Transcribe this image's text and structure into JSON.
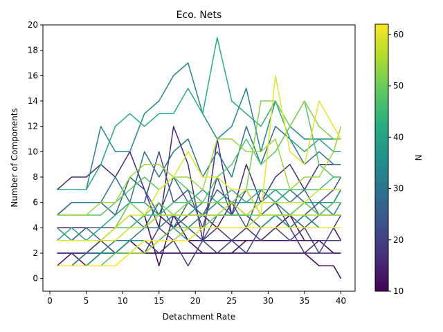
{
  "chart_data": {
    "type": "line",
    "title": "Eco. Nets",
    "xlabel": "Detachment Rate",
    "ylabel": "Number of Components",
    "xlim": [
      -0.95,
      41.95
    ],
    "ylim": [
      -1,
      20
    ],
    "xticks": [
      0,
      5,
      10,
      15,
      20,
      25,
      30,
      35,
      40
    ],
    "yticks": [
      0,
      2,
      4,
      6,
      8,
      10,
      12,
      14,
      16,
      18,
      20
    ],
    "grid": false,
    "colormap": "viridis",
    "colorbar": {
      "label": "N",
      "min": 10,
      "max": 62,
      "ticks": [
        10,
        20,
        30,
        40,
        50,
        60
      ]
    },
    "x": [
      1,
      3,
      5,
      7,
      9,
      11,
      13,
      15,
      17,
      19,
      21,
      23,
      25,
      27,
      29,
      31,
      33,
      35,
      37,
      39,
      40
    ],
    "series": [
      {
        "n": 10,
        "values": [
          2,
          2,
          2,
          2,
          2,
          3,
          2,
          2,
          2,
          2,
          2,
          2,
          2,
          2,
          2,
          2,
          2,
          2,
          1,
          1,
          0
        ]
      },
      {
        "n": 11,
        "values": [
          1,
          1,
          2,
          3,
          4,
          4,
          5,
          1,
          5,
          3,
          2,
          2,
          2,
          3,
          3,
          4,
          5,
          3,
          3,
          2,
          2
        ]
      },
      {
        "n": 12,
        "values": [
          2,
          2,
          2,
          2,
          2,
          3,
          3,
          3,
          3,
          3,
          3,
          3,
          3,
          3,
          3,
          3,
          3,
          3,
          3,
          3,
          3
        ]
      },
      {
        "n": 13,
        "values": [
          1,
          2,
          1,
          2,
          2,
          2,
          2,
          2,
          2,
          2,
          2,
          2,
          2,
          2,
          2,
          2,
          2,
          2,
          2,
          2,
          2
        ]
      },
      {
        "n": 14,
        "values": [
          4,
          4,
          4,
          4,
          4,
          4,
          4,
          5,
          4,
          5,
          5,
          4,
          6,
          5,
          4,
          5,
          4,
          5,
          4,
          4,
          3
        ]
      },
      {
        "n": 16,
        "values": [
          7,
          8,
          8,
          9,
          8,
          10,
          7,
          4,
          12,
          9,
          3,
          11,
          5,
          9,
          6,
          8,
          9,
          7,
          9,
          9,
          9
        ]
      },
      {
        "n": 18,
        "values": [
          2,
          2,
          2,
          3,
          2,
          2,
          3,
          2,
          3,
          1,
          3,
          4,
          3,
          4,
          3,
          4,
          4,
          2,
          3,
          3,
          3
        ]
      },
      {
        "n": 20,
        "values": [
          1,
          1,
          1,
          2,
          2,
          2,
          2,
          4,
          3,
          4,
          3,
          2,
          3,
          2,
          4,
          4,
          3,
          4,
          2,
          4,
          5
        ]
      },
      {
        "n": 22,
        "values": [
          3,
          3,
          4,
          4,
          4,
          6,
          6,
          10,
          6,
          7,
          4,
          8,
          5,
          7,
          5,
          6,
          4,
          5,
          6,
          7,
          8
        ]
      },
      {
        "n": 24,
        "values": [
          1,
          1,
          1,
          2,
          2,
          3,
          3,
          3,
          4,
          4,
          3,
          5,
          5,
          5,
          4,
          5,
          5,
          4,
          5,
          5,
          5
        ]
      },
      {
        "n": 26,
        "values": [
          5,
          6,
          6,
          6,
          5,
          8,
          7,
          5,
          8,
          6,
          5,
          7,
          6,
          4,
          7,
          6,
          7,
          6,
          5,
          6,
          6
        ]
      },
      {
        "n": 28,
        "values": [
          3,
          3,
          4,
          3,
          4,
          5,
          4,
          6,
          4,
          6,
          5,
          5,
          6,
          7,
          5,
          6,
          6,
          7,
          5,
          6,
          7
        ]
      },
      {
        "n": 30,
        "values": [
          5,
          6,
          6,
          6,
          8,
          6,
          10,
          8,
          10,
          11,
          8,
          10,
          8,
          12,
          9,
          12,
          11,
          9,
          10,
          9,
          9
        ]
      },
      {
        "n": 32,
        "values": [
          1,
          1,
          2,
          2,
          3,
          3,
          4,
          4,
          5,
          4,
          5,
          6,
          5,
          5,
          6,
          6,
          5,
          6,
          6,
          5,
          6
        ]
      },
      {
        "n": 34,
        "values": [
          7,
          7,
          7,
          12,
          10,
          10,
          13,
          14,
          16,
          17,
          13,
          11,
          12,
          15,
          10,
          14,
          12,
          11,
          11,
          11,
          11
        ]
      },
      {
        "n": 36,
        "values": [
          4,
          3,
          3,
          3,
          4,
          4,
          4,
          5,
          5,
          5,
          6,
          6,
          6,
          6,
          6,
          7,
          6,
          6,
          6,
          6,
          7
        ]
      },
      {
        "n": 38,
        "values": [
          1,
          1,
          1,
          2,
          2,
          3,
          3,
          3,
          4,
          3,
          4,
          4,
          4,
          4,
          4,
          5,
          4,
          5,
          4,
          4,
          4
        ]
      },
      {
        "n": 40,
        "values": [
          3,
          4,
          3,
          4,
          5,
          6,
          6,
          5,
          6,
          6,
          7,
          6,
          7,
          6,
          7,
          6,
          7,
          7,
          7,
          7,
          7
        ]
      },
      {
        "n": 42,
        "values": [
          7,
          7,
          7,
          9,
          12,
          13,
          12,
          13,
          13,
          15,
          13,
          19,
          14,
          13,
          12,
          14,
          11,
          10,
          11,
          10,
          10
        ]
      },
      {
        "n": 44,
        "values": [
          1,
          1,
          1,
          1,
          2,
          2,
          2,
          3,
          3,
          3,
          4,
          4,
          4,
          4,
          4,
          4,
          4,
          4,
          4,
          4,
          4
        ]
      },
      {
        "n": 46,
        "values": [
          3,
          3,
          3,
          3,
          4,
          4,
          5,
          5,
          6,
          6,
          6,
          6,
          7,
          7,
          7,
          7,
          7,
          7,
          7,
          8,
          8
        ]
      },
      {
        "n": 48,
        "values": [
          5,
          5,
          5,
          5,
          6,
          7,
          8,
          7,
          8,
          7,
          6,
          8,
          9,
          11,
          9,
          10,
          12,
          14,
          9,
          8,
          8
        ]
      },
      {
        "n": 50,
        "values": [
          1,
          1,
          1,
          1,
          2,
          2,
          3,
          3,
          4,
          4,
          4,
          5,
          5,
          5,
          5,
          5,
          5,
          6,
          5,
          6,
          6
        ]
      },
      {
        "n": 52,
        "values": [
          3,
          3,
          3,
          3,
          4,
          6,
          5,
          6,
          5,
          6,
          6,
          6,
          6,
          7,
          14,
          14,
          12,
          14,
          12,
          11,
          11
        ]
      },
      {
        "n": 54,
        "values": [
          5,
          5,
          5,
          6,
          6,
          8,
          9,
          9,
          8,
          8,
          7,
          11,
          11,
          10,
          10,
          11,
          7,
          8,
          8,
          10,
          12
        ]
      },
      {
        "n": 56,
        "values": [
          1,
          1,
          1,
          1,
          1,
          2,
          2,
          3,
          3,
          4,
          4,
          4,
          4,
          4,
          5,
          5,
          5,
          5,
          5,
          5,
          5
        ]
      },
      {
        "n": 58,
        "values": [
          3,
          3,
          3,
          3,
          3,
          4,
          4,
          5,
          5,
          5,
          5,
          5,
          6,
          5,
          6,
          6,
          6,
          6,
          7,
          7,
          7
        ]
      },
      {
        "n": 60,
        "values": [
          3,
          3,
          3,
          3,
          4,
          5,
          5,
          7,
          8,
          10,
          8,
          8,
          7,
          7,
          5,
          16,
          10,
          9,
          14,
          12,
          11
        ]
      },
      {
        "n": 62,
        "values": [
          1,
          1,
          1,
          1,
          1,
          2,
          3,
          3,
          3,
          3,
          4,
          4,
          4,
          4,
          4,
          4,
          4,
          4,
          4,
          4,
          4
        ]
      }
    ]
  }
}
